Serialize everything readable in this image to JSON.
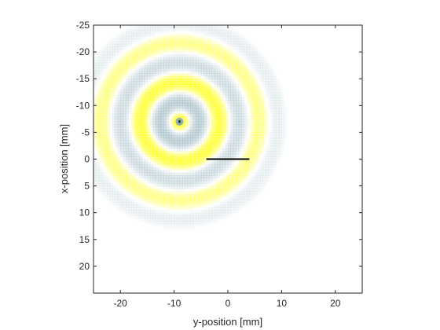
{
  "chart_data": {
    "type": "heatmap",
    "title": "",
    "xlabel": "y-position [mm]",
    "ylabel": "x-position [mm]",
    "xlim": [
      -25,
      25
    ],
    "ylim": [
      -25,
      25
    ],
    "y_axis_direction": "reversed",
    "x_ticks": [
      -20,
      -10,
      0,
      10,
      20
    ],
    "x_tick_labels": [
      "-20",
      "-10",
      "0",
      "10",
      "20"
    ],
    "y_ticks": [
      -25,
      -20,
      -15,
      -10,
      -5,
      0,
      5,
      10,
      15,
      20
    ],
    "y_tick_labels": [
      "-25",
      "-20",
      "-15",
      "-10",
      "-5",
      "0",
      "5",
      "10",
      "15",
      "20"
    ],
    "grid": false,
    "colormap": {
      "positive": "#ffff00",
      "negative": "#87a9b5",
      "zero": "#ffffff"
    },
    "field": {
      "center": {
        "y": -9,
        "x": -7
      },
      "wavelength_mm": 7.4,
      "extent_radius_mm": 22
    },
    "source_marker": {
      "y": -9,
      "x": -7,
      "color": "#000000"
    },
    "line_segment": {
      "y": [
        -4,
        4
      ],
      "x": [
        0,
        0
      ],
      "color": "#000000"
    }
  }
}
